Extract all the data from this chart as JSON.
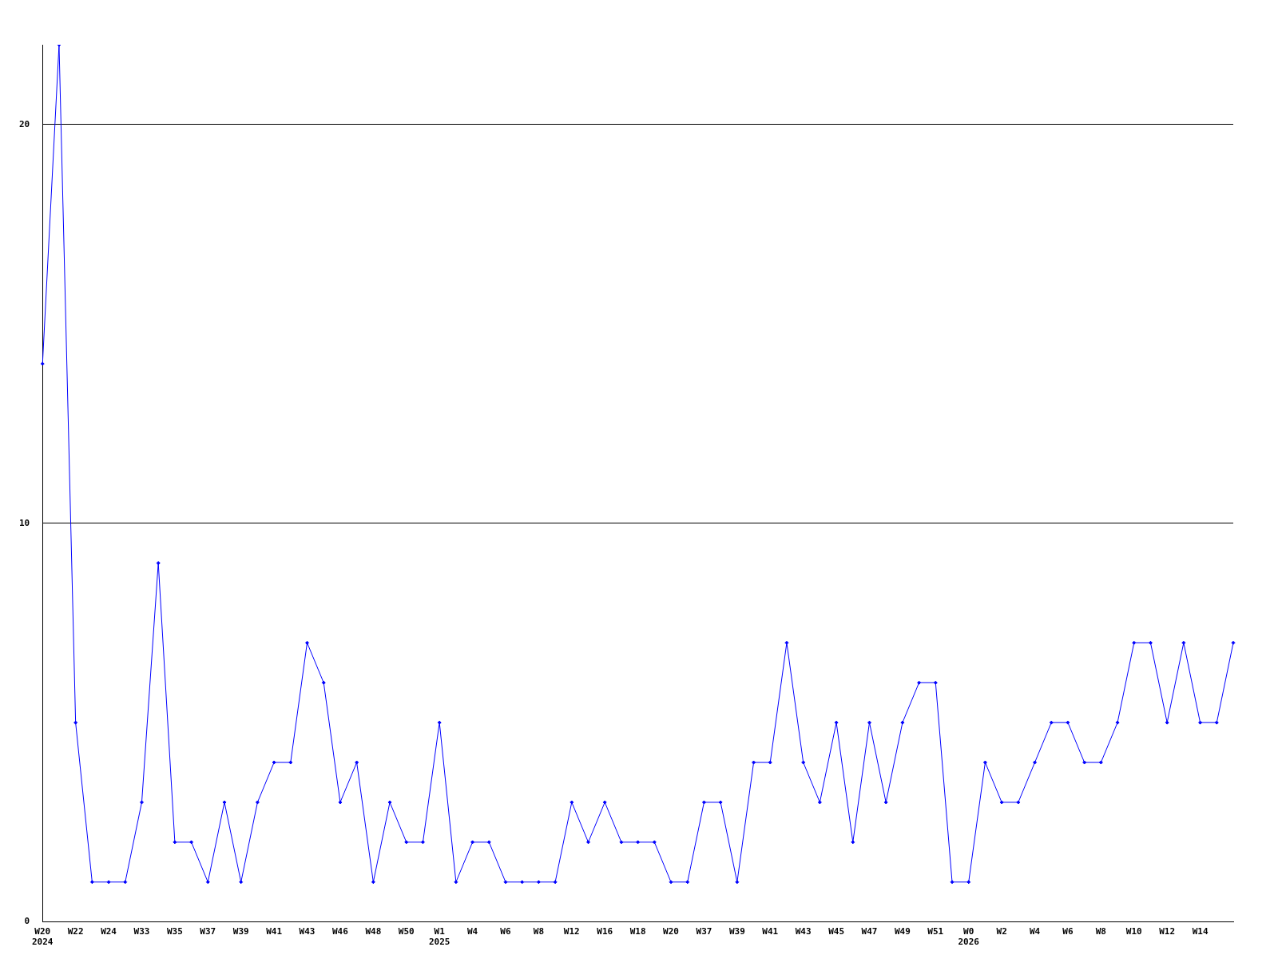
{
  "chart_data": {
    "type": "line",
    "categories": [
      "W20\n2024",
      null,
      "W22",
      null,
      "W24",
      null,
      "W33",
      null,
      "W35",
      null,
      "W37",
      null,
      "W39",
      null,
      "W41",
      null,
      "W43",
      null,
      "W46",
      null,
      "W48",
      null,
      "W50",
      null,
      "W1\n2025",
      null,
      "W4",
      null,
      "W6",
      null,
      "W8",
      null,
      "W12",
      null,
      "W16",
      null,
      "W18",
      null,
      "W20",
      null,
      "W37",
      null,
      "W39",
      null,
      "W41",
      null,
      "W43",
      null,
      "W45",
      null,
      "W47",
      null,
      "W49",
      null,
      "W51",
      null,
      "W0\n2026",
      null,
      "W2",
      null,
      "W4",
      null,
      "W6",
      null,
      "W8",
      null,
      "W10",
      null,
      "W12",
      null,
      "W14",
      null,
      null
    ],
    "series": [
      {
        "color": "#0000ff",
        "values": [
          14,
          22,
          5,
          1,
          1,
          1,
          3,
          9,
          2,
          2,
          1,
          3,
          1,
          3,
          4,
          4,
          7,
          6,
          3,
          4,
          1,
          3,
          2,
          2,
          5,
          1,
          2,
          2,
          1,
          1,
          1,
          1,
          3,
          2,
          3,
          2,
          2,
          2,
          1,
          1,
          3,
          3,
          1,
          4,
          4,
          7,
          4,
          3,
          5,
          2,
          5,
          3,
          5,
          6,
          6,
          1,
          1,
          4,
          3,
          3,
          4,
          5,
          5,
          4,
          4,
          5,
          7,
          7,
          5,
          7,
          5,
          5,
          7
        ]
      }
    ],
    "ylim": [
      0,
      22
    ],
    "yticks": [
      0,
      10,
      20
    ],
    "grid": "y",
    "legend": false,
    "marker": "diamond",
    "line_style": "solid"
  }
}
